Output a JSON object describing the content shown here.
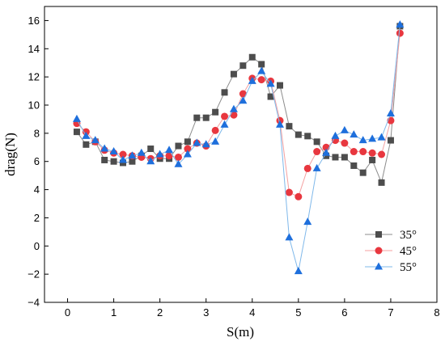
{
  "chart_data": {
    "type": "line",
    "xlabel": "S(m)",
    "ylabel": "drag(N)",
    "xlim": [
      -0.5,
      8
    ],
    "ylim": [
      -4,
      17
    ],
    "xticks": [
      0,
      1,
      2,
      3,
      4,
      5,
      6,
      7,
      8
    ],
    "yticks": [
      -4,
      -2,
      0,
      2,
      4,
      6,
      8,
      10,
      12,
      14,
      16
    ],
    "grid": false,
    "legend": "bottom-right",
    "series": [
      {
        "name": "35°",
        "marker": "square",
        "line_color": "#8c8c8c",
        "marker_color": "#4d4d4d",
        "x": [
          0.2,
          0.4,
          0.6,
          0.8,
          1.0,
          1.2,
          1.4,
          1.6,
          1.8,
          2.0,
          2.2,
          2.4,
          2.6,
          2.8,
          3.0,
          3.2,
          3.4,
          3.6,
          3.8,
          4.0,
          4.2,
          4.4,
          4.6,
          4.8,
          5.0,
          5.2,
          5.4,
          5.6,
          5.8,
          6.0,
          6.2,
          6.4,
          6.6,
          6.8,
          7.0,
          7.2
        ],
        "y": [
          8.1,
          7.2,
          7.4,
          6.1,
          6.0,
          5.9,
          6.0,
          6.4,
          6.9,
          6.2,
          6.2,
          7.1,
          7.4,
          9.1,
          9.1,
          9.5,
          10.9,
          12.2,
          12.8,
          13.4,
          12.9,
          10.6,
          11.4,
          8.5,
          7.9,
          7.8,
          7.4,
          6.4,
          6.3,
          6.3,
          5.7,
          5.2,
          6.1,
          4.5,
          7.5,
          15.6
        ]
      },
      {
        "name": "45°",
        "marker": "circle",
        "line_color": "#f4a0a0",
        "marker_color": "#e8373f",
        "x": [
          0.2,
          0.4,
          0.6,
          0.8,
          1.0,
          1.2,
          1.4,
          1.6,
          1.8,
          2.0,
          2.2,
          2.4,
          2.6,
          2.8,
          3.0,
          3.2,
          3.4,
          3.6,
          3.8,
          4.0,
          4.2,
          4.4,
          4.6,
          4.8,
          5.0,
          5.2,
          5.4,
          5.6,
          5.8,
          6.0,
          6.2,
          6.4,
          6.6,
          6.8,
          7.0,
          7.2
        ],
        "y": [
          8.7,
          8.1,
          7.4,
          6.8,
          6.6,
          6.5,
          6.4,
          6.3,
          6.2,
          6.4,
          6.4,
          6.3,
          6.9,
          7.3,
          7.1,
          8.2,
          9.2,
          9.3,
          10.8,
          11.9,
          11.8,
          11.7,
          8.9,
          3.8,
          3.5,
          5.5,
          6.7,
          7.0,
          7.5,
          7.3,
          6.7,
          6.7,
          6.6,
          6.5,
          8.9,
          15.1
        ]
      },
      {
        "name": "55°",
        "marker": "triangle",
        "line_color": "#7fb8ea",
        "marker_color": "#1e6fdc",
        "x": [
          0.2,
          0.4,
          0.6,
          0.8,
          1.0,
          1.2,
          1.4,
          1.6,
          1.8,
          2.0,
          2.2,
          2.4,
          2.6,
          2.8,
          3.0,
          3.2,
          3.4,
          3.6,
          3.8,
          4.0,
          4.2,
          4.4,
          4.6,
          4.8,
          5.0,
          5.2,
          5.4,
          5.6,
          5.8,
          6.0,
          6.2,
          6.4,
          6.6,
          6.8,
          7.0,
          7.2
        ],
        "y": [
          9.0,
          7.8,
          7.5,
          6.9,
          6.7,
          6.1,
          6.4,
          6.6,
          6.0,
          6.5,
          6.8,
          5.8,
          6.5,
          7.3,
          7.2,
          7.4,
          8.6,
          9.7,
          10.3,
          11.7,
          12.4,
          11.5,
          8.6,
          0.6,
          -1.8,
          1.7,
          5.5,
          6.6,
          7.8,
          8.2,
          7.9,
          7.5,
          7.6,
          7.7,
          9.4,
          15.7
        ]
      }
    ]
  }
}
